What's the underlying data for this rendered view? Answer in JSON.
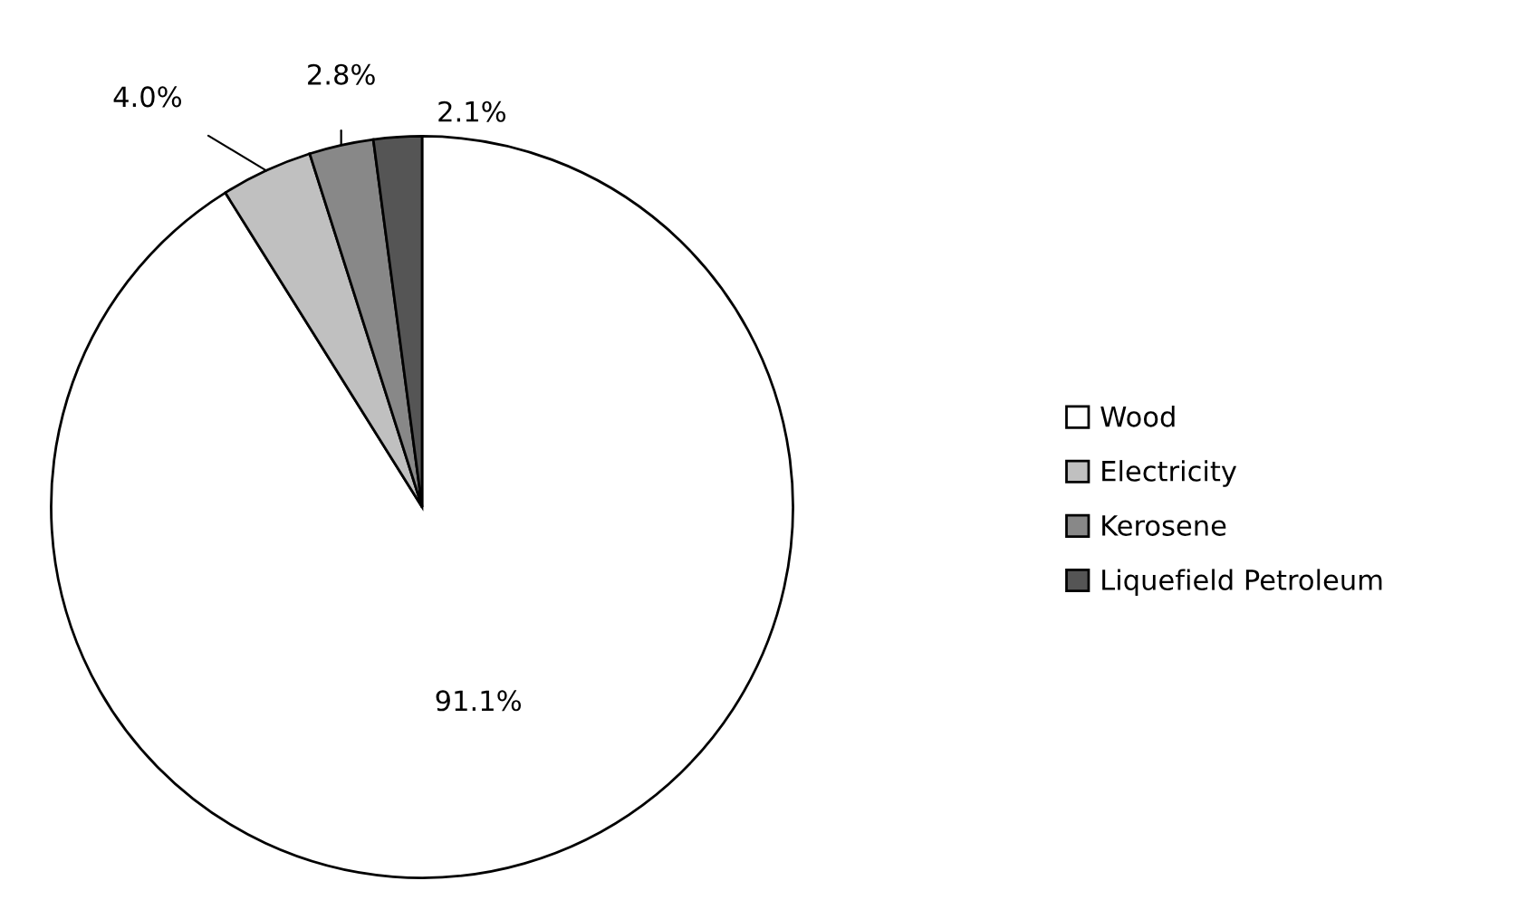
{
  "chart_data": {
    "type": "pie",
    "categories": [
      "Wood",
      "Electricity",
      "Kerosene",
      "Liquefield Petroleum"
    ],
    "values": [
      91.1,
      4.0,
      2.8,
      2.1
    ],
    "value_labels": [
      "91.1%",
      "4.0%",
      "2.8%",
      "2.1%"
    ],
    "colors": [
      "#ffffff",
      "#c0c0c0",
      "#888888",
      "#555555"
    ],
    "legend": "right"
  }
}
